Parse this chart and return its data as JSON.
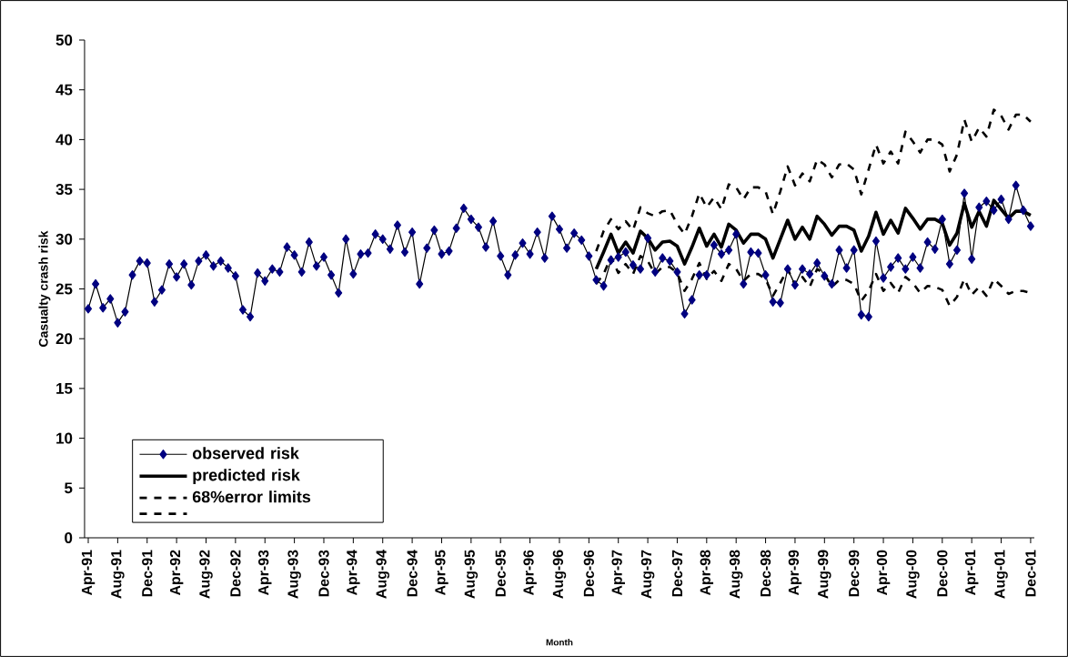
{
  "chart_data": {
    "type": "line",
    "xlabel": "Month",
    "ylabel": "Casualty crash risk",
    "categories": [
      "Apr-91",
      null,
      null,
      null,
      "Aug-91",
      null,
      null,
      null,
      "Dec-91",
      null,
      null,
      null,
      "Apr-92",
      null,
      null,
      null,
      "Aug-92",
      null,
      null,
      null,
      "Dec-92",
      null,
      null,
      null,
      "Apr-93",
      null,
      null,
      null,
      "Aug-93",
      null,
      null,
      null,
      "Dec-93",
      null,
      null,
      null,
      "Apr-94",
      null,
      null,
      null,
      "Aug-94",
      null,
      null,
      null,
      "Dec-94",
      null,
      null,
      null,
      "Apr-95",
      null,
      null,
      null,
      "Aug-95",
      null,
      null,
      null,
      "Dec-95",
      null,
      null,
      null,
      "Apr-96",
      null,
      null,
      null,
      "Aug-96",
      null,
      null,
      null,
      "Dec-96",
      null,
      null,
      null,
      "Apr-97",
      null,
      null,
      null,
      "Aug-97",
      null,
      null,
      null,
      "Dec-97",
      null,
      null,
      null,
      "Apr-98",
      null,
      null,
      null,
      "Aug-98",
      null,
      null,
      null,
      "Dec-98",
      null,
      null,
      null,
      "Apr-99",
      null,
      null,
      null,
      "Aug-99",
      null,
      null,
      null,
      "Dec-99",
      null,
      null,
      null,
      "Apr-00",
      null,
      null,
      null,
      "Aug-00",
      null,
      null,
      null,
      "Dec-00",
      null,
      null,
      null,
      "Apr-01",
      null,
      null,
      null,
      "Aug-01",
      null,
      null,
      null,
      "Dec-01"
    ],
    "series": [
      {
        "name": "observed risk",
        "color": "#000080",
        "marker": "diamond",
        "line_style": "solid",
        "values": [
          23.0,
          25.5,
          23.1,
          24.0,
          21.6,
          22.7,
          26.4,
          27.8,
          27.6,
          23.7,
          24.9,
          27.5,
          26.2,
          27.5,
          25.4,
          27.8,
          28.4,
          27.3,
          27.8,
          27.1,
          26.3,
          22.9,
          22.2,
          26.6,
          25.8,
          27.0,
          26.7,
          29.2,
          28.4,
          26.7,
          29.7,
          27.3,
          28.2,
          26.4,
          24.6,
          30.0,
          26.5,
          28.5,
          28.6,
          30.5,
          30.0,
          29.0,
          31.4,
          28.7,
          30.7,
          25.5,
          29.1,
          30.9,
          28.5,
          28.8,
          31.1,
          33.1,
          32.0,
          31.2,
          29.2,
          31.8,
          28.3,
          26.4,
          28.4,
          29.6,
          28.5,
          30.7,
          28.1,
          32.3,
          31.0,
          29.1,
          30.6,
          29.9,
          28.3,
          25.9,
          25.3,
          27.9,
          28.2,
          28.7,
          27.4,
          27.0,
          30.1,
          26.7,
          28.1,
          27.8,
          26.7,
          22.5,
          23.9,
          26.4,
          26.4,
          29.4,
          28.5,
          28.9,
          30.5,
          25.5,
          28.7,
          28.6,
          26.4,
          23.7,
          23.6,
          27.0,
          25.4,
          27.0,
          26.5,
          27.6,
          26.3,
          25.5,
          28.9,
          27.1,
          28.9,
          22.4,
          22.2,
          29.8,
          26.1,
          27.2,
          28.1,
          27.0,
          28.2,
          27.1,
          29.7,
          29.0,
          32.0,
          27.5,
          28.9,
          34.6,
          28.0,
          33.2,
          33.8,
          32.9,
          34.0,
          32.0,
          35.4,
          32.9,
          31.3
        ]
      },
      {
        "name": "predicted risk",
        "color": "#000000",
        "marker": "none",
        "line_style": "solid",
        "values": [
          null,
          null,
          null,
          null,
          null,
          null,
          null,
          null,
          null,
          null,
          null,
          null,
          null,
          null,
          null,
          null,
          null,
          null,
          null,
          null,
          null,
          null,
          null,
          null,
          null,
          null,
          null,
          null,
          null,
          null,
          null,
          null,
          null,
          null,
          null,
          null,
          null,
          null,
          null,
          null,
          null,
          null,
          null,
          null,
          null,
          null,
          null,
          null,
          null,
          null,
          null,
          null,
          null,
          null,
          null,
          null,
          null,
          null,
          null,
          null,
          null,
          null,
          null,
          null,
          null,
          null,
          null,
          null,
          null,
          27.0,
          28.7,
          30.5,
          28.6,
          29.7,
          28.6,
          30.8,
          30.1,
          28.9,
          29.7,
          29.8,
          29.3,
          27.5,
          29.2,
          31.1,
          29.3,
          30.5,
          29.2,
          31.5,
          30.9,
          29.6,
          30.5,
          30.5,
          30.0,
          28.1,
          30.0,
          31.9,
          30.0,
          31.2,
          30.0,
          32.3,
          31.5,
          30.4,
          31.3,
          31.3,
          30.9,
          28.8,
          30.3,
          32.7,
          30.5,
          31.9,
          30.6,
          33.1,
          32.1,
          31.0,
          32.0,
          32.0,
          31.6,
          29.4,
          30.6,
          33.6,
          31.2,
          32.8,
          31.3,
          33.9,
          33.0,
          32.1,
          32.8,
          32.8,
          32.4
        ]
      },
      {
        "name": "68%error limits",
        "color": "#000000",
        "marker": "none",
        "line_style": "dashed",
        "values": [
          null,
          null,
          null,
          null,
          null,
          null,
          null,
          null,
          null,
          null,
          null,
          null,
          null,
          null,
          null,
          null,
          null,
          null,
          null,
          null,
          null,
          null,
          null,
          null,
          null,
          null,
          null,
          null,
          null,
          null,
          null,
          null,
          null,
          null,
          null,
          null,
          null,
          null,
          null,
          null,
          null,
          null,
          null,
          null,
          null,
          null,
          null,
          null,
          null,
          null,
          null,
          null,
          null,
          null,
          null,
          null,
          null,
          null,
          null,
          null,
          null,
          null,
          null,
          null,
          null,
          null,
          null,
          null,
          null,
          28.8,
          30.8,
          32.0,
          31.0,
          31.8,
          30.9,
          33.2,
          32.6,
          32.3,
          32.8,
          32.9,
          31.5,
          30.5,
          32.3,
          34.6,
          33.2,
          34.2,
          33.0,
          35.5,
          35.2,
          34.0,
          35.2,
          35.2,
          34.8,
          32.5,
          34.8,
          37.3,
          35.4,
          36.6,
          35.8,
          38.0,
          37.5,
          36.2,
          37.5,
          37.6,
          37.0,
          34.5,
          37.0,
          39.5,
          37.6,
          38.8,
          37.6,
          40.8,
          39.8,
          38.7,
          40.0,
          40.0,
          39.5,
          36.8,
          38.5,
          42.0,
          39.8,
          41.2,
          40.3,
          43.0,
          42.4,
          41.0,
          42.5,
          42.5,
          41.8
        ]
      },
      {
        "color": "#000000",
        "marker": "none",
        "line_style": "dashed",
        "values": [
          null,
          null,
          null,
          null,
          null,
          null,
          null,
          null,
          null,
          null,
          null,
          null,
          null,
          null,
          null,
          null,
          null,
          null,
          null,
          null,
          null,
          null,
          null,
          null,
          null,
          null,
          null,
          null,
          null,
          null,
          null,
          null,
          null,
          null,
          null,
          null,
          null,
          null,
          null,
          null,
          null,
          null,
          null,
          null,
          null,
          null,
          null,
          null,
          null,
          null,
          null,
          null,
          null,
          null,
          null,
          null,
          null,
          null,
          null,
          null,
          null,
          null,
          null,
          null,
          null,
          null,
          null,
          null,
          null,
          25.5,
          26.5,
          28.2,
          26.6,
          27.5,
          26.5,
          28.3,
          27.8,
          26.5,
          27.2,
          27.2,
          26.6,
          24.8,
          26.0,
          27.6,
          26.0,
          26.8,
          25.8,
          27.5,
          27.0,
          25.8,
          26.5,
          26.5,
          26.0,
          24.3,
          25.6,
          27.0,
          25.4,
          26.2,
          25.2,
          27.0,
          26.5,
          25.2,
          25.9,
          25.9,
          25.5,
          23.8,
          24.8,
          26.5,
          24.8,
          25.6,
          24.6,
          26.2,
          25.6,
          24.6,
          25.3,
          25.2,
          24.9,
          23.3,
          24.2,
          26.0,
          24.4,
          25.2,
          24.3,
          26.0,
          25.3,
          24.5,
          24.8,
          24.8,
          24.6
        ]
      }
    ],
    "ylim": [
      0,
      50
    ],
    "yticks": [
      0,
      5,
      10,
      15,
      20,
      25,
      30,
      35,
      40,
      45,
      50
    ],
    "legend": "bottom left"
  }
}
